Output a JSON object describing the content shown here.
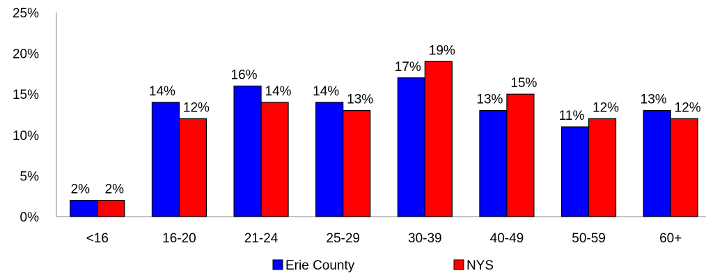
{
  "chart_data": {
    "type": "bar",
    "categories": [
      "<16",
      "16-20",
      "21-24",
      "25-29",
      "30-39",
      "40-49",
      "50-59",
      "60+"
    ],
    "series": [
      {
        "name": "Erie County",
        "values": [
          2,
          14,
          16,
          14,
          17,
          13,
          11,
          13
        ],
        "labels": [
          "2%",
          "14%",
          "16%",
          "14%",
          "17%",
          "13%",
          "11%",
          "13%"
        ],
        "color": "#0000ff"
      },
      {
        "name": "NYS",
        "values": [
          2,
          12,
          14,
          13,
          19,
          15,
          12,
          12
        ],
        "labels": [
          "2%",
          "12%",
          "14%",
          "13%",
          "19%",
          "15%",
          "12%",
          "12%"
        ],
        "color": "#ff0000"
      }
    ],
    "ylim": [
      0,
      25
    ],
    "y_ticks": [
      0,
      5,
      10,
      15,
      20,
      25
    ],
    "y_tick_labels": [
      "0%",
      "5%",
      "10%",
      "15%",
      "20%",
      "25%"
    ],
    "grid": false,
    "legend": "bottom",
    "title": "",
    "xlabel": "",
    "ylabel": ""
  }
}
